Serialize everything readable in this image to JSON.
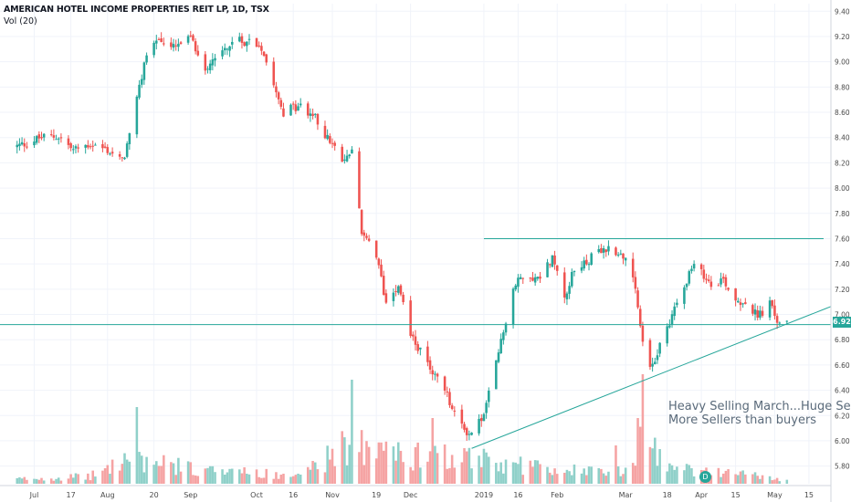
{
  "header": {
    "title": "AMERICAN HOTEL INCOME PROPERTIES REIT LP, 1D, TSX",
    "volume_label": "Vol (20)"
  },
  "annotations": {
    "note_line1": "Heavy Selling March...Huge Sellin",
    "note_line2": "More Sellers than buyers",
    "dividend_marker": "D",
    "last_price_label": "6.92"
  },
  "colors": {
    "up": "#26a69a",
    "down": "#ef5350",
    "vol_up": "#8fd0c9",
    "vol_down": "#f5a3a3",
    "trendline": "#26a69a",
    "grid": "#f0f3fa",
    "axis_text": "#4a4a4a"
  },
  "chart_data": {
    "type": "candlestick",
    "symbol": "AMERICAN HOTEL INCOME PROPERTIES REIT LP",
    "interval": "1D",
    "exchange": "TSX",
    "ylim": [
      5.66,
      9.46
    ],
    "y_ticks": [
      "5.80",
      "6.00",
      "6.20",
      "6.40",
      "6.60",
      "6.80",
      "7.00",
      "7.20",
      "7.40",
      "7.60",
      "7.80",
      "8.00",
      "8.20",
      "8.40",
      "8.60",
      "8.80",
      "9.00",
      "9.20",
      "9.40"
    ],
    "x_ticks": [
      {
        "label": "Jul",
        "date": "2018-07-02"
      },
      {
        "label": "17",
        "date": "2018-07-17"
      },
      {
        "label": "Aug",
        "date": "2018-08-01"
      },
      {
        "label": "20",
        "date": "2018-08-20"
      },
      {
        "label": "Sep",
        "date": "2018-09-04"
      },
      {
        "label": "Oct",
        "date": "2018-10-01"
      },
      {
        "label": "16",
        "date": "2018-10-16"
      },
      {
        "label": "Nov",
        "date": "2018-11-01"
      },
      {
        "label": "19",
        "date": "2018-11-19"
      },
      {
        "label": "Dec",
        "date": "2018-12-03"
      },
      {
        "label": "2019",
        "date": "2019-01-02"
      },
      {
        "label": "16",
        "date": "2019-01-16"
      },
      {
        "label": "Feb",
        "date": "2019-02-01"
      },
      {
        "label": "Mar",
        "date": "2019-03-01"
      },
      {
        "label": "18",
        "date": "2019-03-18"
      },
      {
        "label": "Apr",
        "date": "2019-04-01"
      },
      {
        "label": "15",
        "date": "2019-04-15"
      },
      {
        "label": "May",
        "date": "2019-05-01"
      },
      {
        "label": "15",
        "date": "2019-05-15"
      }
    ],
    "price_path": [
      [
        "2018-06-25",
        8.33
      ],
      [
        "2018-07-05",
        8.4
      ],
      [
        "2018-07-12",
        8.41
      ],
      [
        "2018-07-18",
        8.3
      ],
      [
        "2018-07-25",
        8.35
      ],
      [
        "2018-08-01",
        8.3
      ],
      [
        "2018-08-07",
        8.21
      ],
      [
        "2018-08-10",
        8.4
      ],
      [
        "2018-08-14",
        8.78
      ],
      [
        "2018-08-17",
        9.08
      ],
      [
        "2018-08-22",
        9.18
      ],
      [
        "2018-08-27",
        9.1
      ],
      [
        "2018-09-04",
        9.18
      ],
      [
        "2018-09-10",
        8.95
      ],
      [
        "2018-09-14",
        9.05
      ],
      [
        "2018-09-21",
        9.15
      ],
      [
        "2018-09-28",
        9.17
      ],
      [
        "2018-10-03",
        9.12
      ],
      [
        "2018-10-08",
        8.85
      ],
      [
        "2018-10-12",
        8.6
      ],
      [
        "2018-10-18",
        8.65
      ],
      [
        "2018-10-24",
        8.58
      ],
      [
        "2018-10-30",
        8.4
      ],
      [
        "2018-11-05",
        8.2
      ],
      [
        "2018-11-09",
        8.3
      ],
      [
        "2018-11-13",
        7.65
      ],
      [
        "2018-11-19",
        7.45
      ],
      [
        "2018-11-23",
        7.1
      ],
      [
        "2018-11-28",
        7.25
      ],
      [
        "2018-12-03",
        6.85
      ],
      [
        "2018-12-07",
        6.7
      ],
      [
        "2018-12-12",
        6.55
      ],
      [
        "2018-12-17",
        6.4
      ],
      [
        "2018-12-21",
        6.2
      ],
      [
        "2018-12-27",
        6.05
      ],
      [
        "2019-01-02",
        6.2
      ],
      [
        "2019-01-08",
        6.7
      ],
      [
        "2019-01-14",
        7.2
      ],
      [
        "2019-01-18",
        7.32
      ],
      [
        "2019-01-24",
        7.28
      ],
      [
        "2019-01-30",
        7.45
      ],
      [
        "2019-02-04",
        7.15
      ],
      [
        "2019-02-08",
        7.35
      ],
      [
        "2019-02-15",
        7.45
      ],
      [
        "2019-02-22",
        7.52
      ],
      [
        "2019-02-27",
        7.5
      ],
      [
        "2019-03-04",
        7.3
      ],
      [
        "2019-03-07",
        6.9
      ],
      [
        "2019-03-11",
        6.55
      ],
      [
        "2019-03-15",
        6.75
      ],
      [
        "2019-03-20",
        7.0
      ],
      [
        "2019-03-25",
        7.25
      ],
      [
        "2019-03-29",
        7.38
      ],
      [
        "2019-04-05",
        7.25
      ],
      [
        "2019-04-10",
        7.28
      ],
      [
        "2019-04-15",
        7.12
      ],
      [
        "2019-04-19",
        7.1
      ],
      [
        "2019-04-24",
        6.98
      ],
      [
        "2019-04-29",
        7.08
      ],
      [
        "2019-05-02",
        6.95
      ],
      [
        "2019-05-06",
        6.92
      ]
    ],
    "volume_profile": [
      [
        "2018-06-25",
        0.05
      ],
      [
        "2018-07-25",
        0.08
      ],
      [
        "2018-08-10",
        0.28
      ],
      [
        "2018-08-20",
        0.22
      ],
      [
        "2018-09-20",
        0.12
      ],
      [
        "2018-10-20",
        0.1
      ],
      [
        "2018-11-09",
        0.45
      ],
      [
        "2018-11-15",
        0.35
      ],
      [
        "2018-12-10",
        0.28
      ],
      [
        "2018-12-20",
        0.3
      ],
      [
        "2019-01-10",
        0.22
      ],
      [
        "2019-02-10",
        0.14
      ],
      [
        "2019-03-05",
        0.15
      ],
      [
        "2019-03-08",
        0.55
      ],
      [
        "2019-03-20",
        0.16
      ],
      [
        "2019-04-20",
        0.1
      ],
      [
        "2019-05-06",
        0.03
      ]
    ],
    "volume_spikes": [
      [
        "2018-08-13",
        0.7
      ],
      [
        "2018-11-09",
        0.95
      ],
      [
        "2018-12-12",
        0.6
      ],
      [
        "2019-03-08",
        1.0
      ],
      [
        "2019-03-06",
        0.6
      ],
      [
        "2019-02-25",
        0.35
      ]
    ],
    "resistance_line": {
      "price": 7.6,
      "from": "2019-01-02",
      "to": "2019-05-21"
    },
    "last_price_line": {
      "price": 6.92
    },
    "trendline": {
      "points": [
        [
          "2018-12-28",
          5.94
        ],
        [
          "2019-05-21",
          7.04
        ]
      ]
    },
    "last_price": 6.92
  }
}
